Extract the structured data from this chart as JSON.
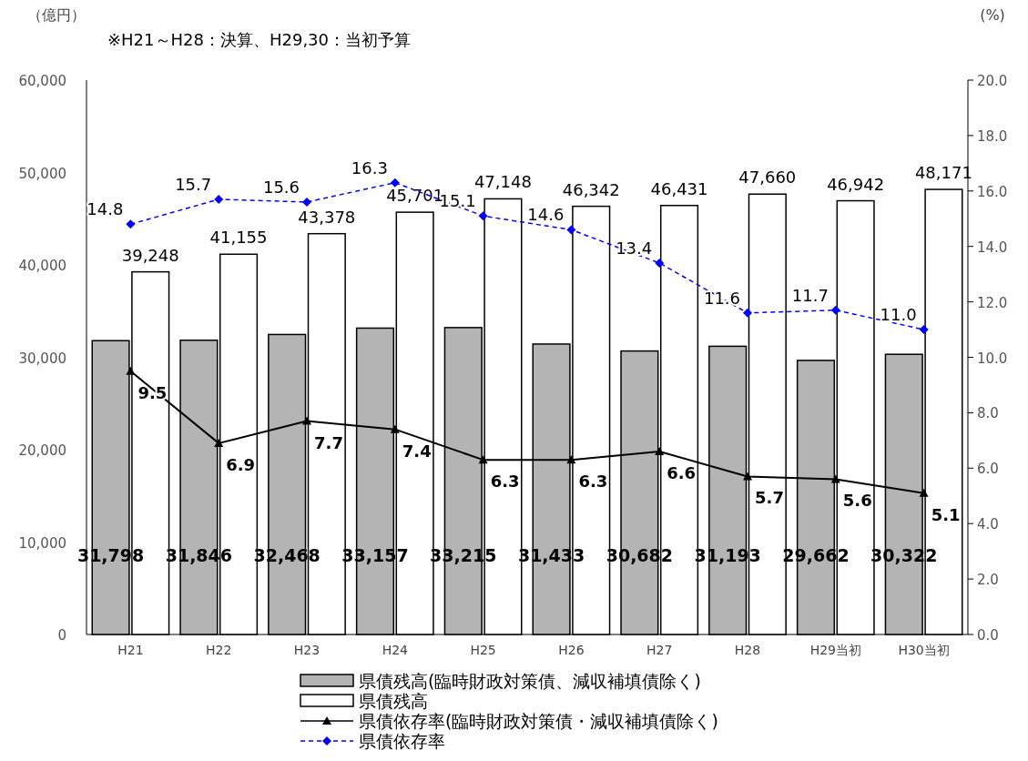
{
  "chart_data": {
    "type": "bar",
    "ylabel": "（億円）",
    "y2label": "(%)",
    "annotations": [
      "※H21～H28：決算、H29,30：当初予算"
    ],
    "categories": [
      "H21",
      "H22",
      "H23",
      "H24",
      "H25",
      "H26",
      "H27",
      "H28",
      "H29当初",
      "H30当初"
    ],
    "ylim": [
      0,
      60000
    ],
    "yticks": [
      0,
      {
        "value": 10000,
        "label": "10,000"
      },
      {
        "value": 20000,
        "label": "20,000"
      },
      {
        "value": 30000,
        "label": "30,000"
      },
      {
        "value": 40000,
        "label": "40,000"
      },
      {
        "value": 50000,
        "label": "50,000"
      },
      {
        "value": 60000,
        "label": "60,000"
      }
    ],
    "y2lim": [
      0,
      20
    ],
    "y2ticks": [
      {
        "value": 0,
        "label": "0.0"
      },
      {
        "value": 2,
        "label": "2.0"
      },
      {
        "value": 4,
        "label": "4.0"
      },
      {
        "value": 6,
        "label": "6.0"
      },
      {
        "value": 8,
        "label": "8.0"
      },
      {
        "value": 10,
        "label": "10.0"
      },
      {
        "value": 12,
        "label": "12.0"
      },
      {
        "value": 14,
        "label": "14.0"
      },
      {
        "value": 16,
        "label": "16.0"
      },
      {
        "value": 18,
        "label": "18.0"
      },
      {
        "value": 20,
        "label": "20.0"
      }
    ],
    "grid": false,
    "legend": "bottom",
    "series": [
      {
        "name": "県債残高(臨時財政対策債、減収補填債除く)",
        "color": "#b4b4b4",
        "values": [
          31798,
          31846,
          32468,
          33157,
          33215,
          31433,
          30682,
          31193,
          29662,
          30322
        ],
        "value_labels": [
          "31,798",
          "31,846",
          "32,468",
          "33,157",
          "33,215",
          "31,433",
          "30,682",
          "31,193",
          "29,662",
          "30,322"
        ]
      },
      {
        "name": "県債残高",
        "color": "#ffffff",
        "values": [
          39248,
          41155,
          43378,
          45701,
          47148,
          46342,
          46431,
          47660,
          46942,
          48171
        ],
        "value_labels": [
          "39,248",
          "41,155",
          "43,378",
          "45,701",
          "47,148",
          "46,342",
          "46,431",
          "47,660",
          "46,942",
          "48,171"
        ]
      },
      {
        "name": "県債依存率(臨時財政対策債・減収補填債除く)",
        "type": "line",
        "axis": "y2",
        "color": "#000000",
        "marker": "triangle",
        "line_style": "solid",
        "values": [
          9.5,
          6.9,
          7.7,
          7.4,
          6.3,
          6.3,
          6.6,
          5.7,
          5.6,
          5.1
        ],
        "value_labels": [
          "9.5",
          "6.9",
          "7.7",
          "7.4",
          "6.3",
          "6.3",
          "6.6",
          "5.7",
          "5.6",
          "5.1"
        ]
      },
      {
        "name": "県債依存率",
        "type": "line",
        "axis": "y2",
        "color": "#0000ff",
        "marker": "diamond",
        "line_style": "dashed",
        "values": [
          14.8,
          15.7,
          15.6,
          16.3,
          15.1,
          14.6,
          13.4,
          11.6,
          11.7,
          11.0
        ],
        "value_labels": [
          "14.8",
          "15.7",
          "15.6",
          "16.3",
          "15.1",
          "14.6",
          "13.4",
          "11.6",
          "11.7",
          "11.0"
        ]
      }
    ]
  }
}
